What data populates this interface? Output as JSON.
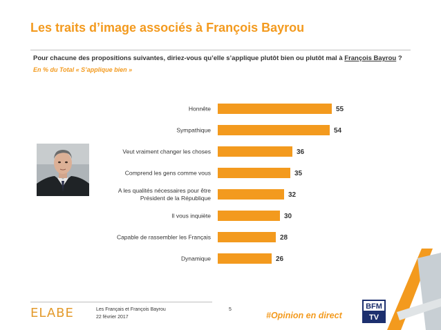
{
  "header": {
    "title": "Les traits d’image associés à François Bayrou",
    "question_prefix": "Pour chacune des propositions suivantes, diriez-vous qu’elle s’applique plutôt bien ou plutôt mal à ",
    "question_name": "François Bayrou",
    "question_suffix": " ?",
    "subtitle": "En % du Total « S’applique bien »"
  },
  "chart_data": {
    "type": "bar",
    "orientation": "horizontal",
    "categories": [
      [
        "Honnête"
      ],
      [
        "Sympathique"
      ],
      [
        "Veut vraiment changer les choses"
      ],
      [
        "Comprend les gens comme vous"
      ],
      [
        "A les qualités nécessaires pour être",
        "Président de la République"
      ],
      [
        "Il vous inquiète"
      ],
      [
        "Capable de rassembler les Français"
      ],
      [
        "Dynamique"
      ]
    ],
    "values": [
      55,
      54,
      36,
      35,
      32,
      30,
      28,
      26
    ],
    "bar_color": "#f39a1e",
    "grid": false
  },
  "footer": {
    "logo": "ELABE",
    "line1": "Les Français et François Bayrou",
    "line2": "22 février 2017",
    "page": "5",
    "hashtag": "#Opinion en direct",
    "channel_logo_text": "BFM TV"
  },
  "icons": [
    "portrait-photo",
    "bfmtv-logo",
    "decorative-a-logo"
  ]
}
